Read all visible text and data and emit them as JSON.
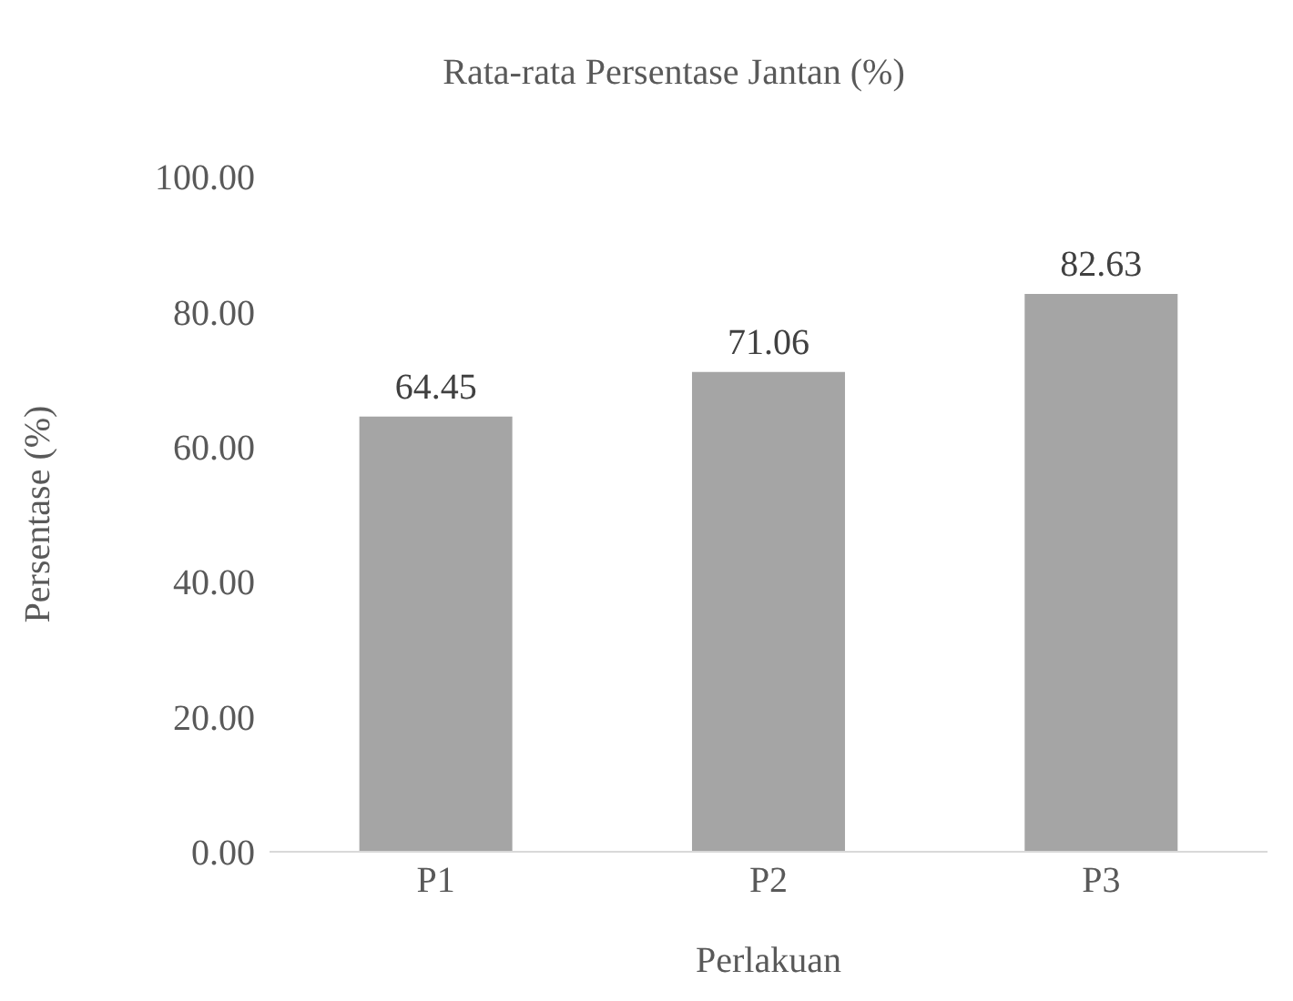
{
  "chart_data": {
    "type": "bar",
    "title": "Rata-rata Persentase Jantan (%)",
    "xlabel": "Perlakuan",
    "ylabel": "Persentase (%)",
    "categories": [
      "P1",
      "P2",
      "P3"
    ],
    "values": [
      64.45,
      71.06,
      82.63
    ],
    "color": "#a5a5a5",
    "ylim": [
      0,
      100
    ],
    "yticks": [
      {
        "value": 0,
        "label": "0.00"
      },
      {
        "value": 20,
        "label": "20.00"
      },
      {
        "value": 40,
        "label": "40.00"
      },
      {
        "value": 60,
        "label": "60.00"
      },
      {
        "value": 80,
        "label": "80.00"
      },
      {
        "value": 100,
        "label": "100.00"
      }
    ],
    "grid": false,
    "data_labels": true,
    "legend": false
  }
}
